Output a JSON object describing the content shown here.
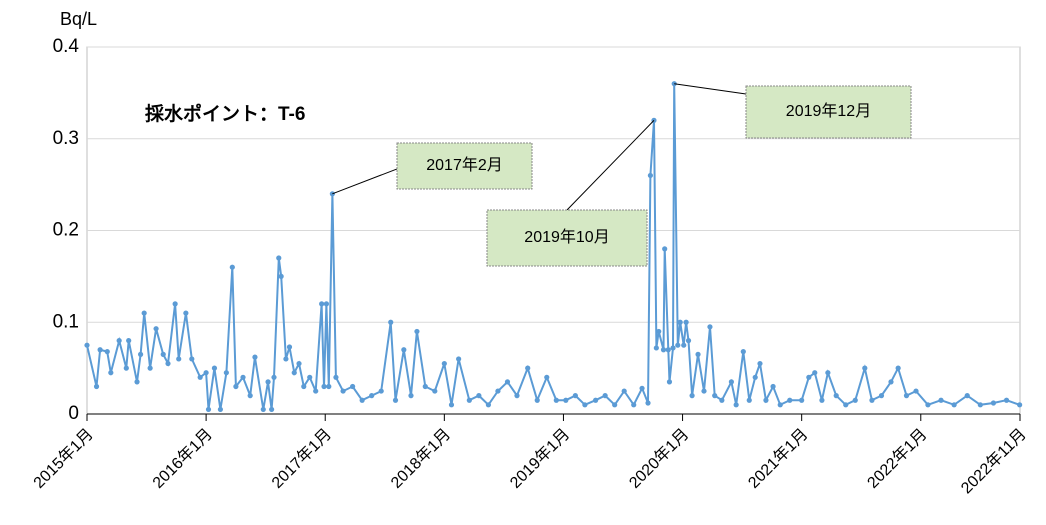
{
  "chart_data": {
    "type": "line",
    "subtitle": "採水ポイント：T-6",
    "y_label": "Bq/L",
    "annotations": [
      "2017年2月",
      "2019年10月",
      "2019年12月"
    ],
    "xlim": [
      2015,
      2022.833
    ],
    "xticks": [
      {
        "value": 2015,
        "label": "2015年1月"
      },
      {
        "value": 2016,
        "label": "2016年1月"
      },
      {
        "value": 2017,
        "label": "2017年1月"
      },
      {
        "value": 2018,
        "label": "2018年1月"
      },
      {
        "value": 2019,
        "label": "2019年1月"
      },
      {
        "value": 2020,
        "label": "2020年1月"
      },
      {
        "value": 2021,
        "label": "2021年1月"
      },
      {
        "value": 2022,
        "label": "2022年1月"
      },
      {
        "value": 2022.833,
        "label": "2022年11月"
      }
    ],
    "ylim": [
      0,
      0.4
    ],
    "yticks": [
      0,
      0.1,
      0.2,
      0.3,
      0.4
    ],
    "grid": true,
    "series": [
      {
        "name": "T-6",
        "color": "#5b9bd5",
        "x": [
          2015.0,
          2015.08,
          2015.11,
          2015.17,
          2015.2,
          2015.27,
          2015.33,
          2015.35,
          2015.42,
          2015.45,
          2015.48,
          2015.53,
          2015.58,
          2015.64,
          2015.68,
          2015.74,
          2015.77,
          2015.83,
          2015.88,
          2015.95,
          2016.0,
          2016.02,
          2016.07,
          2016.12,
          2016.17,
          2016.22,
          2016.25,
          2016.31,
          2016.37,
          2016.41,
          2016.48,
          2016.52,
          2016.55,
          2016.57,
          2016.61,
          2016.63,
          2016.67,
          2016.7,
          2016.74,
          2016.78,
          2016.82,
          2016.87,
          2016.92,
          2016.97,
          2016.99,
          2017.01,
          2017.03,
          2017.06,
          2017.09,
          2017.15,
          2017.23,
          2017.31,
          2017.39,
          2017.47,
          2017.55,
          2017.59,
          2017.66,
          2017.72,
          2017.77,
          2017.84,
          2017.92,
          2018.0,
          2018.06,
          2018.12,
          2018.21,
          2018.29,
          2018.37,
          2018.45,
          2018.53,
          2018.61,
          2018.7,
          2018.78,
          2018.86,
          2018.94,
          2019.02,
          2019.1,
          2019.18,
          2019.27,
          2019.35,
          2019.43,
          2019.51,
          2019.59,
          2019.66,
          2019.71,
          2019.73,
          2019.76,
          2019.78,
          2019.8,
          2019.84,
          2019.85,
          2019.88,
          2019.89,
          2019.92,
          2019.93,
          2019.96,
          2019.98,
          2020.01,
          2020.03,
          2020.05,
          2020.08,
          2020.13,
          2020.18,
          2020.23,
          2020.27,
          2020.33,
          2020.41,
          2020.45,
          2020.51,
          2020.56,
          2020.61,
          2020.65,
          2020.7,
          2020.76,
          2020.82,
          2020.9,
          2021.0,
          2021.06,
          2021.11,
          2021.17,
          2021.22,
          2021.29,
          2021.37,
          2021.45,
          2021.53,
          2021.59,
          2021.67,
          2021.75,
          2021.81,
          2021.88,
          2021.96,
          2022.06,
          2022.17,
          2022.28,
          2022.39,
          2022.5,
          2022.61,
          2022.72,
          2022.83
        ],
        "values": [
          0.075,
          0.03,
          0.07,
          0.068,
          0.045,
          0.08,
          0.05,
          0.08,
          0.035,
          0.065,
          0.11,
          0.05,
          0.093,
          0.065,
          0.055,
          0.12,
          0.06,
          0.11,
          0.06,
          0.04,
          0.045,
          0.005,
          0.05,
          0.005,
          0.045,
          0.16,
          0.03,
          0.04,
          0.02,
          0.062,
          0.005,
          0.035,
          0.005,
          0.04,
          0.17,
          0.15,
          0.06,
          0.073,
          0.045,
          0.055,
          0.03,
          0.04,
          0.025,
          0.12,
          0.03,
          0.12,
          0.03,
          0.24,
          0.04,
          0.025,
          0.03,
          0.015,
          0.02,
          0.025,
          0.1,
          0.015,
          0.07,
          0.02,
          0.09,
          0.03,
          0.025,
          0.055,
          0.01,
          0.06,
          0.015,
          0.02,
          0.01,
          0.025,
          0.035,
          0.02,
          0.05,
          0.015,
          0.04,
          0.015,
          0.015,
          0.02,
          0.01,
          0.015,
          0.02,
          0.01,
          0.025,
          0.01,
          0.028,
          0.012,
          0.26,
          0.32,
          0.072,
          0.09,
          0.07,
          0.18,
          0.07,
          0.035,
          0.072,
          0.36,
          0.075,
          0.1,
          0.075,
          0.1,
          0.08,
          0.02,
          0.065,
          0.025,
          0.095,
          0.02,
          0.015,
          0.035,
          0.01,
          0.068,
          0.015,
          0.04,
          0.055,
          0.015,
          0.03,
          0.01,
          0.015,
          0.015,
          0.04,
          0.045,
          0.015,
          0.045,
          0.02,
          0.01,
          0.015,
          0.05,
          0.015,
          0.02,
          0.035,
          0.05,
          0.02,
          0.025,
          0.01,
          0.015,
          0.01,
          0.02,
          0.01,
          0.012,
          0.015,
          0.01
        ]
      }
    ]
  }
}
